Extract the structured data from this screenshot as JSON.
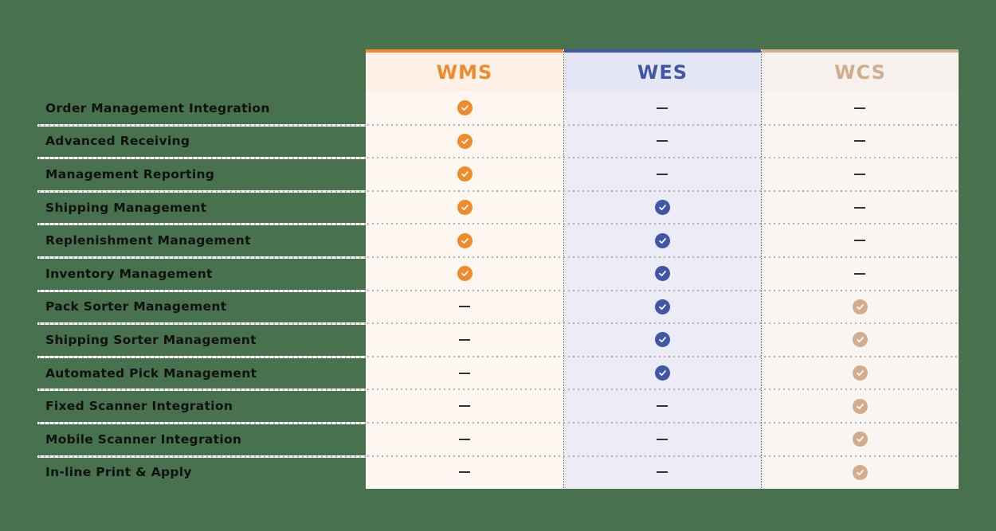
{
  "columns": [
    {
      "key": "wms",
      "label": "WMS",
      "accent": "#f08a2b",
      "header_bg": "#fdf0e6",
      "body_bg": "#fef6f0"
    },
    {
      "key": "wes",
      "label": "WES",
      "accent": "#3f57a6",
      "header_bg": "#e4e6f3",
      "body_bg": "#ebecf6"
    },
    {
      "key": "wcs",
      "label": "WCS",
      "accent": "#d3ad8b",
      "header_bg": "#f6f1ec",
      "body_bg": "#f9f6f2"
    }
  ],
  "rows": [
    {
      "label": "Order Management Integration",
      "wms": "check",
      "wes": "dash",
      "wcs": "dash"
    },
    {
      "label": "Advanced Receiving",
      "wms": "check",
      "wes": "dash",
      "wcs": "dash"
    },
    {
      "label": "Management Reporting",
      "wms": "check",
      "wes": "dash",
      "wcs": "dash"
    },
    {
      "label": "Shipping Management",
      "wms": "check",
      "wes": "check",
      "wcs": "dash"
    },
    {
      "label": "Replenishment Management",
      "wms": "check",
      "wes": "check",
      "wcs": "dash"
    },
    {
      "label": "Inventory Management",
      "wms": "check",
      "wes": "check",
      "wcs": "dash"
    },
    {
      "label": "Pack Sorter Management",
      "wms": "dash",
      "wes": "check",
      "wcs": "check"
    },
    {
      "label": "Shipping Sorter Management",
      "wms": "dash",
      "wes": "check",
      "wcs": "check"
    },
    {
      "label": "Automated Pick Management",
      "wms": "dash",
      "wes": "check",
      "wcs": "check"
    },
    {
      "label": "Fixed Scanner Integration",
      "wms": "dash",
      "wes": "dash",
      "wcs": "check"
    },
    {
      "label": "Mobile Scanner Integration",
      "wms": "dash",
      "wes": "dash",
      "wcs": "check"
    },
    {
      "label": "In-line Print & Apply",
      "wms": "dash",
      "wes": "dash",
      "wcs": "check"
    }
  ],
  "icons": {
    "check": "check-circle-icon",
    "dash": "dash-icon"
  }
}
